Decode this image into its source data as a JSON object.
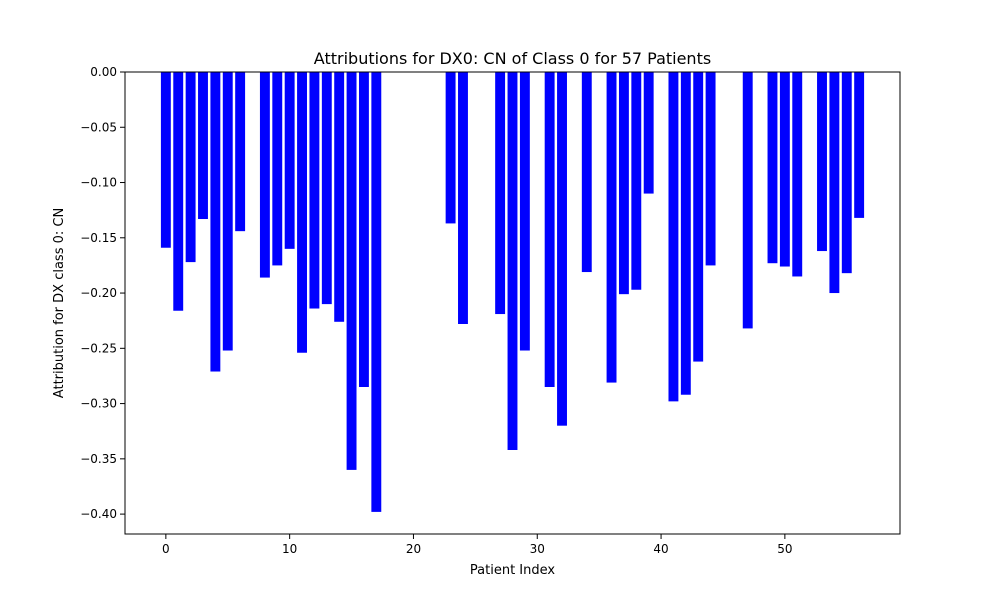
{
  "chart_data": {
    "type": "bar",
    "title": "Attributions for DX0: CN of Class 0 for 57 Patients",
    "xlabel": "Patient Index",
    "ylabel": "Attribution for DX class 0: CN",
    "xlim": [
      -3.3,
      59.3
    ],
    "ylim": [
      -0.418,
      0.0
    ],
    "x_ticks": [
      0,
      10,
      20,
      30,
      40,
      50
    ],
    "x_tick_labels": [
      "0",
      "10",
      "20",
      "30",
      "40",
      "50"
    ],
    "y_ticks": [
      0.0,
      -0.05,
      -0.1,
      -0.15,
      -0.2,
      -0.25,
      -0.3,
      -0.35,
      -0.4
    ],
    "y_tick_labels": [
      "0.00",
      "−0.05",
      "−0.10",
      "−0.15",
      "−0.20",
      "−0.25",
      "−0.30",
      "−0.35",
      "−0.40"
    ],
    "bar_color": "#0000ff",
    "grid": false,
    "x": [
      0,
      1,
      2,
      3,
      4,
      5,
      6,
      7,
      8,
      9,
      10,
      11,
      12,
      13,
      14,
      15,
      16,
      17,
      18,
      19,
      20,
      21,
      22,
      23,
      24,
      25,
      26,
      27,
      28,
      29,
      30,
      31,
      32,
      33,
      34,
      35,
      36,
      37,
      38,
      39,
      40,
      41,
      42,
      43,
      44,
      45,
      46,
      47,
      48,
      49,
      50,
      51,
      52,
      53,
      54,
      55,
      56
    ],
    "values": [
      -0.159,
      -0.216,
      -0.172,
      -0.133,
      -0.271,
      -0.252,
      -0.144,
      0,
      -0.186,
      -0.175,
      -0.16,
      -0.254,
      -0.214,
      -0.21,
      -0.226,
      -0.36,
      -0.285,
      -0.398,
      0,
      0,
      0,
      0,
      0,
      -0.137,
      -0.228,
      0,
      0,
      -0.219,
      -0.342,
      -0.252,
      0,
      -0.285,
      -0.32,
      0,
      -0.181,
      0,
      -0.281,
      -0.201,
      -0.197,
      -0.11,
      0,
      -0.298,
      -0.292,
      -0.262,
      -0.175,
      0,
      0,
      -0.232,
      0,
      -0.173,
      -0.176,
      -0.185,
      0,
      -0.162,
      -0.2,
      -0.182,
      -0.132
    ]
  }
}
